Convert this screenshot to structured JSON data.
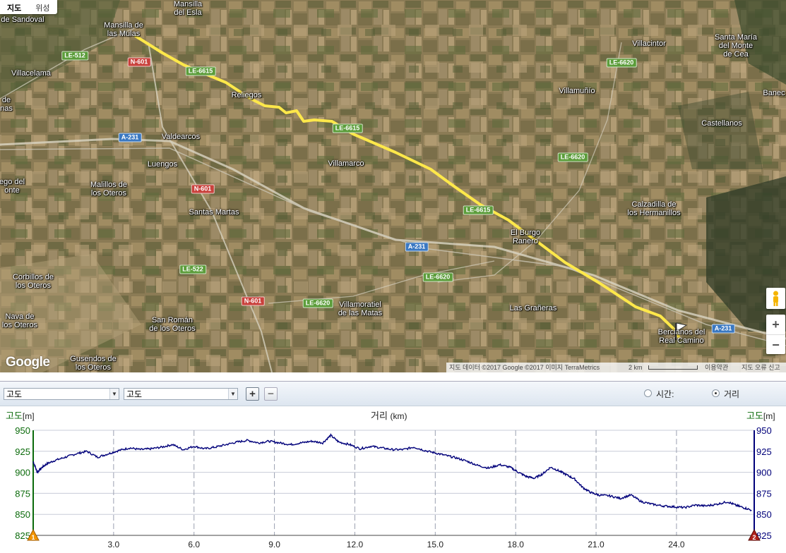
{
  "map": {
    "tabs": [
      {
        "label": "지도"
      },
      {
        "label": "위성"
      }
    ],
    "places": [
      {
        "text": "Villaverde\nde Sandoval"
      },
      {
        "text": "Mansilla\ndel Esla"
      },
      {
        "text": "Mansilla de\nlas Mulas"
      },
      {
        "text": "Villacelama"
      },
      {
        "text": "Reliegos"
      },
      {
        "text": "Valdearcos"
      },
      {
        "text": "Luengos"
      },
      {
        "text": "Villamarco"
      },
      {
        "text": "Malillos de\nlos Oteros"
      },
      {
        "text": "Santas Martas"
      },
      {
        "text": "Corbillos de\nlos Oteros"
      },
      {
        "text": "Nava de\nlos Oteros"
      },
      {
        "text": "San Román\nde los Oteros"
      },
      {
        "text": "Gusendos de\nlos Oteros"
      },
      {
        "text": "Villamoratiel\nde las Matas"
      },
      {
        "text": "El Burgo\nRanero"
      },
      {
        "text": "Las Grañeras"
      },
      {
        "text": "Bercianos del\nReal Camino"
      },
      {
        "text": "Villamuñío"
      },
      {
        "text": "Villacintor"
      },
      {
        "text": "Santa María\ndel Monte\nde Cea"
      },
      {
        "text": "Castellanos"
      },
      {
        "text": "Calzadilla de\nlos Hermanillos"
      },
      {
        "text": "Banec"
      },
      {
        "text": "de\nnas"
      },
      {
        "text": "ego del\nonte"
      }
    ],
    "roads": [
      {
        "text": "LE-512",
        "color": "green"
      },
      {
        "text": "N-601",
        "color": "red"
      },
      {
        "text": "LE-6615",
        "color": "green"
      },
      {
        "text": "LE-6615",
        "color": "green"
      },
      {
        "text": "LE-6615",
        "color": "green"
      },
      {
        "text": "A-231",
        "color": "blue"
      },
      {
        "text": "A-231",
        "color": "blue"
      },
      {
        "text": "A-231",
        "color": "blue"
      },
      {
        "text": "N-601",
        "color": "red"
      },
      {
        "text": "N-601",
        "color": "red"
      },
      {
        "text": "LE-522",
        "color": "green"
      },
      {
        "text": "LE-6620",
        "color": "green"
      },
      {
        "text": "LE-6620",
        "color": "green"
      },
      {
        "text": "LE-6620",
        "color": "green"
      },
      {
        "text": "LE-6620",
        "color": "green"
      }
    ],
    "google_logo": "Google",
    "attribution": {
      "data": "지도 데이터 ©2017 Google ©2017 이미지 TerraMetrics",
      "scale": "2 km",
      "terms": "이용약관",
      "report": "지도 오류 신고"
    },
    "zoom_in": "+",
    "zoom_out": "−",
    "colors": {
      "route": "#ffe84a"
    }
  },
  "toolbar": {
    "left_select": "고도",
    "right_select": "고도",
    "plus_label": "+",
    "minus_label": "−",
    "time_label": "시간:",
    "distance_label": "거리",
    "selected": "distance"
  },
  "chart_data": {
    "type": "line",
    "title": "",
    "xlabel": "거리",
    "xunit": "km",
    "ylabel_left": "고도",
    "ylabel_right": "고도",
    "yunit": "m",
    "xlim": [
      0,
      26.9
    ],
    "ylim": [
      825,
      950
    ],
    "xticks": [
      3.0,
      6.0,
      9.0,
      12.0,
      15.0,
      18.0,
      21.0,
      24.0
    ],
    "xtick_labels": [
      "3.0",
      "6.0",
      "9.0",
      "12.0",
      "15.0",
      "18.0",
      "21.0",
      "24.0"
    ],
    "yticks": [
      825,
      850,
      875,
      900,
      925,
      950
    ],
    "grid": true,
    "line_color": "#00007a",
    "series": [
      {
        "x": [
          0,
          0.15,
          0.3,
          0.5,
          0.8,
          1.2,
          1.6,
          2.0,
          2.4,
          2.8,
          3.2,
          3.6,
          4.0,
          4.4,
          4.8,
          5.2,
          5.6,
          6.0,
          6.4,
          6.8,
          7.2,
          7.6,
          8.0,
          8.4,
          8.8,
          9.2,
          9.6,
          10.0,
          10.4,
          10.8,
          11.1,
          11.4,
          11.8,
          12.2,
          12.6,
          13.0,
          13.4,
          13.8,
          14.2,
          14.6,
          15.0,
          15.4,
          15.8,
          16.2,
          16.6,
          17.0,
          17.4,
          17.8,
          18.1,
          18.4,
          18.7,
          19.0,
          19.3,
          19.6,
          19.9,
          20.2,
          20.5,
          20.8,
          21.1,
          21.5,
          21.9,
          22.3,
          22.7,
          23.1,
          23.5,
          23.9,
          24.3,
          24.7,
          25.1,
          25.5,
          25.9,
          26.2,
          26.5,
          26.8
        ],
        "y": [
          913,
          900,
          905,
          910,
          914,
          918,
          922,
          925,
          918,
          922,
          926,
          929,
          927,
          928,
          930,
          933,
          927,
          931,
          928,
          930,
          933,
          936,
          938,
          935,
          937,
          935,
          933,
          935,
          937,
          935,
          944,
          936,
          933,
          928,
          931,
          929,
          927,
          927,
          930,
          926,
          923,
          920,
          917,
          913,
          908,
          905,
          909,
          906,
          900,
          895,
          893,
          898,
          906,
          902,
          897,
          892,
          882,
          876,
          873,
          872,
          869,
          873,
          865,
          862,
          860,
          859,
          858,
          861,
          860,
          862,
          865,
          861,
          858,
          855
        ]
      }
    ]
  }
}
